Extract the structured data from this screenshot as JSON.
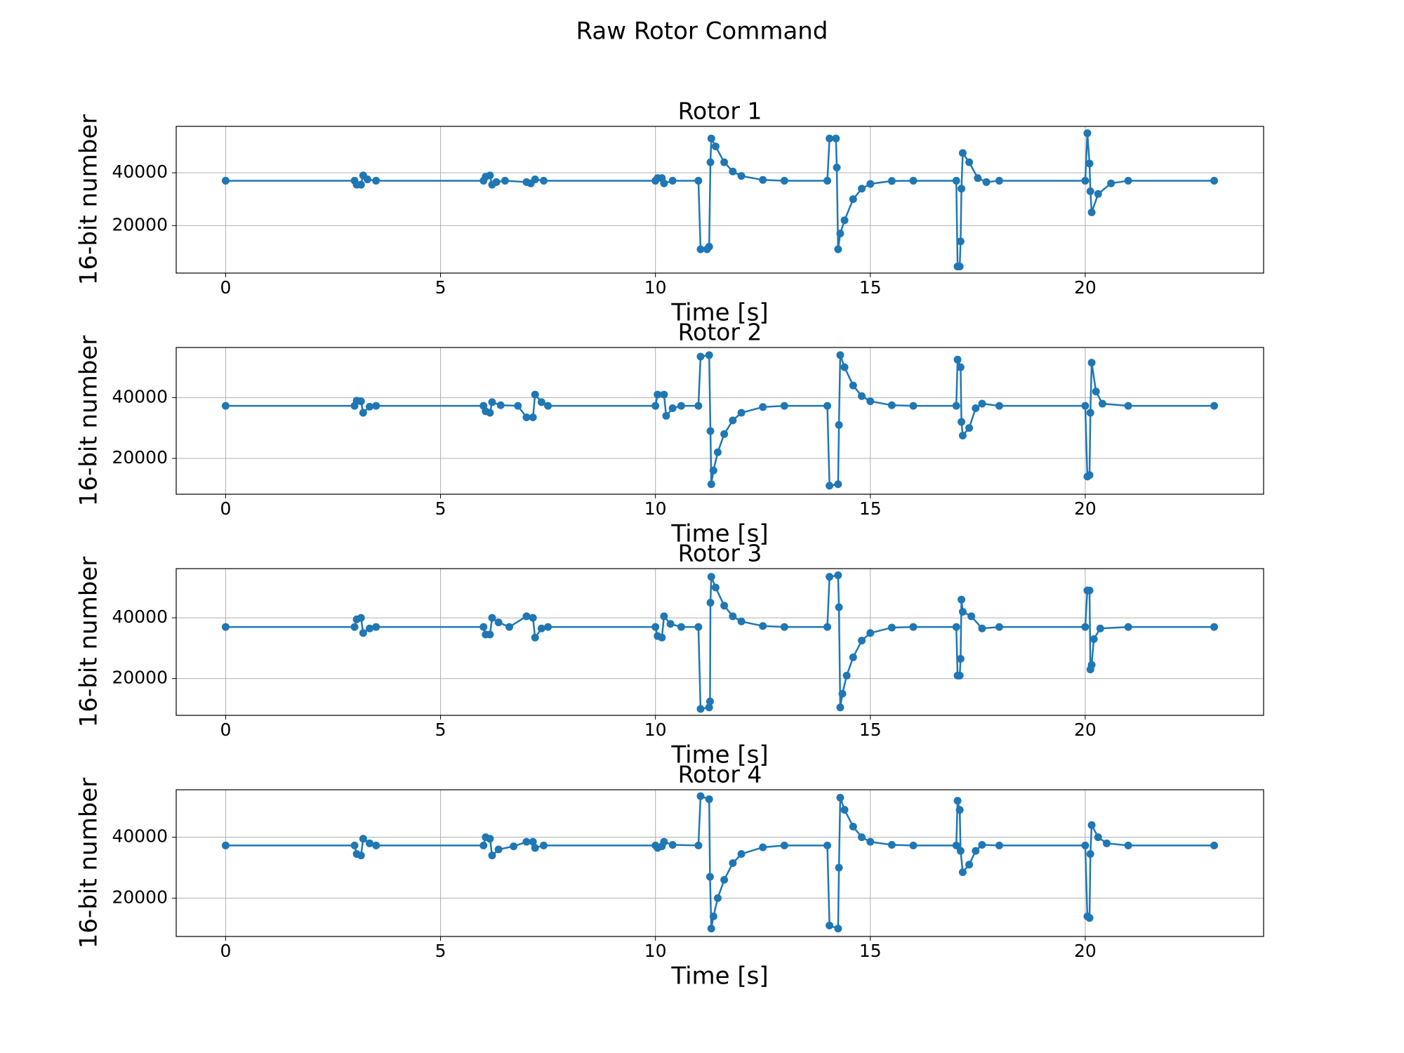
{
  "title": "Raw Rotor Command",
  "chart_data": [
    {
      "type": "line",
      "title": "Rotor 1",
      "xlabel": "Time [s]",
      "ylabel": "16-bit number",
      "color": "#1f77b4",
      "grid": true,
      "xlim": [
        -1.15,
        24.15
      ],
      "ylim": [
        2000,
        57600
      ],
      "xticks": [
        0,
        5,
        10,
        15,
        20
      ],
      "yticks": [
        20000,
        40000
      ],
      "x": [
        0,
        3.0,
        3.05,
        3.15,
        3.2,
        3.3,
        3.5,
        6.0,
        6.05,
        6.15,
        6.2,
        6.3,
        6.5,
        7.0,
        7.1,
        7.2,
        7.4,
        10.0,
        10.05,
        10.15,
        10.2,
        10.4,
        11.0,
        11.05,
        11.2,
        11.25,
        11.28,
        11.3,
        11.4,
        11.6,
        11.8,
        12.0,
        12.5,
        13.0,
        14.0,
        14.05,
        14.2,
        14.22,
        14.25,
        14.3,
        14.4,
        14.6,
        14.8,
        15.0,
        15.5,
        16.0,
        17.0,
        17.03,
        17.08,
        17.1,
        17.12,
        17.15,
        17.3,
        17.5,
        17.7,
        18.0,
        20.0,
        20.05,
        20.1,
        20.12,
        20.15,
        20.3,
        20.6,
        21.0,
        23.0
      ],
      "values": [
        37000,
        37000,
        35500,
        35500,
        39000,
        37500,
        37000,
        37000,
        38500,
        39000,
        35500,
        36500,
        37000,
        36500,
        36000,
        37500,
        37000,
        37000,
        38000,
        38000,
        36000,
        37000,
        37000,
        11000,
        11000,
        12000,
        44000,
        53000,
        50000,
        44000,
        40500,
        38800,
        37300,
        37000,
        37000,
        53000,
        53000,
        42000,
        11000,
        17000,
        22000,
        30000,
        34000,
        35800,
        36900,
        37000,
        37000,
        4500,
        4500,
        14000,
        34000,
        47500,
        44000,
        38000,
        36500,
        37000,
        37000,
        55000,
        43500,
        33000,
        25000,
        32000,
        36000,
        37000,
        37000
      ]
    },
    {
      "type": "line",
      "title": "Rotor 2",
      "xlabel": "Time [s]",
      "ylabel": "16-bit number",
      "color": "#1f77b4",
      "grid": true,
      "xlim": [
        -1.15,
        24.15
      ],
      "ylim": [
        8200,
        56500
      ],
      "xticks": [
        0,
        5,
        10,
        15,
        20
      ],
      "yticks": [
        20000,
        40000
      ],
      "x": [
        0,
        3.0,
        3.05,
        3.15,
        3.2,
        3.35,
        3.5,
        6.0,
        6.05,
        6.15,
        6.2,
        6.4,
        6.8,
        7.0,
        7.15,
        7.2,
        7.35,
        7.5,
        10.0,
        10.05,
        10.2,
        10.25,
        10.4,
        10.6,
        11.0,
        11.05,
        11.25,
        11.28,
        11.3,
        11.35,
        11.45,
        11.6,
        11.8,
        12.0,
        12.5,
        13.0,
        14.0,
        14.05,
        14.25,
        14.27,
        14.3,
        14.4,
        14.6,
        14.8,
        15.0,
        15.5,
        16.0,
        17.0,
        17.03,
        17.1,
        17.12,
        17.15,
        17.3,
        17.45,
        17.6,
        18.0,
        20.0,
        20.05,
        20.1,
        20.12,
        20.15,
        20.25,
        20.4,
        21.0,
        23.0
      ],
      "values": [
        37300,
        37300,
        39000,
        38800,
        35000,
        37000,
        37300,
        37300,
        35500,
        35000,
        38500,
        37500,
        37300,
        33500,
        33500,
        41000,
        38500,
        37300,
        37300,
        41000,
        41000,
        34000,
        36500,
        37300,
        37300,
        53500,
        54000,
        29000,
        11500,
        16000,
        22000,
        28000,
        32500,
        35000,
        36900,
        37300,
        37300,
        11000,
        11500,
        31000,
        54000,
        50000,
        44000,
        40500,
        38800,
        37500,
        37300,
        37300,
        52500,
        50000,
        32000,
        27500,
        30000,
        36500,
        38000,
        37300,
        37300,
        14000,
        14500,
        35000,
        51500,
        42000,
        38000,
        37300,
        37300
      ]
    },
    {
      "type": "line",
      "title": "Rotor 3",
      "xlabel": "Time [s]",
      "ylabel": "16-bit number",
      "color": "#1f77b4",
      "grid": true,
      "xlim": [
        -1.15,
        24.15
      ],
      "ylim": [
        7900,
        56200
      ],
      "xticks": [
        0,
        5,
        10,
        15,
        20
      ],
      "yticks": [
        20000,
        40000
      ],
      "x": [
        0,
        3.0,
        3.05,
        3.15,
        3.2,
        3.35,
        3.5,
        6.0,
        6.05,
        6.15,
        6.2,
        6.35,
        6.6,
        7.0,
        7.15,
        7.2,
        7.35,
        7.5,
        10.0,
        10.05,
        10.15,
        10.2,
        10.35,
        10.6,
        11.0,
        11.05,
        11.25,
        11.27,
        11.28,
        11.3,
        11.4,
        11.6,
        11.8,
        12.0,
        12.5,
        13.0,
        14.0,
        14.05,
        14.25,
        14.27,
        14.3,
        14.35,
        14.45,
        14.6,
        14.8,
        15.0,
        15.5,
        16.0,
        17.0,
        17.03,
        17.08,
        17.1,
        17.12,
        17.15,
        17.35,
        17.6,
        18.0,
        20.0,
        20.05,
        20.1,
        20.12,
        20.15,
        20.2,
        20.35,
        21.0,
        23.0
      ],
      "values": [
        37000,
        37000,
        39500,
        40000,
        35000,
        36500,
        37000,
        37000,
        34500,
        34500,
        40000,
        38500,
        37000,
        40500,
        40000,
        33500,
        36500,
        37000,
        37000,
        34000,
        33500,
        40500,
        38000,
        37000,
        37000,
        10000,
        10500,
        12500,
        45000,
        53500,
        50000,
        44000,
        40500,
        38800,
        37300,
        37000,
        37000,
        53500,
        54000,
        43500,
        10500,
        15000,
        21000,
        27000,
        32500,
        35000,
        36800,
        37000,
        37000,
        21000,
        21000,
        26500,
        46000,
        42000,
        40500,
        36500,
        37000,
        37000,
        49000,
        49000,
        23000,
        24500,
        33000,
        36500,
        37000,
        37000
      ]
    },
    {
      "type": "line",
      "title": "Rotor 4",
      "xlabel": "Time [s]",
      "ylabel": "16-bit number",
      "color": "#1f77b4",
      "grid": true,
      "xlim": [
        -1.15,
        24.15
      ],
      "ylim": [
        7400,
        55600
      ],
      "xticks": [
        0,
        5,
        10,
        15,
        20
      ],
      "yticks": [
        20000,
        40000
      ],
      "x": [
        0,
        3.0,
        3.05,
        3.15,
        3.2,
        3.35,
        3.5,
        6.0,
        6.05,
        6.15,
        6.2,
        6.35,
        6.7,
        7.0,
        7.15,
        7.2,
        7.4,
        10.0,
        10.05,
        10.15,
        10.2,
        10.4,
        11.0,
        11.05,
        11.25,
        11.27,
        11.3,
        11.35,
        11.45,
        11.6,
        11.8,
        12.0,
        12.5,
        13.0,
        14.0,
        14.05,
        14.25,
        14.27,
        14.3,
        14.4,
        14.6,
        14.8,
        15.0,
        15.5,
        16.0,
        17.0,
        17.03,
        17.08,
        17.1,
        17.15,
        17.3,
        17.45,
        17.6,
        18.0,
        20.0,
        20.05,
        20.1,
        20.12,
        20.15,
        20.3,
        20.5,
        21.0,
        23.0
      ],
      "values": [
        37300,
        37300,
        34500,
        34000,
        39500,
        38000,
        37300,
        37300,
        40000,
        39500,
        34000,
        36000,
        37000,
        38500,
        38500,
        36500,
        37300,
        37300,
        36500,
        37000,
        38500,
        37500,
        37300,
        53500,
        52500,
        27000,
        10000,
        14000,
        20000,
        26000,
        31500,
        34500,
        36700,
        37300,
        37300,
        11000,
        10000,
        30000,
        53000,
        49000,
        43500,
        40000,
        38500,
        37500,
        37300,
        37300,
        52000,
        49000,
        35500,
        28500,
        31000,
        35500,
        37500,
        37300,
        37300,
        14000,
        13500,
        34500,
        44000,
        40000,
        38000,
        37300,
        37300
      ]
    }
  ]
}
